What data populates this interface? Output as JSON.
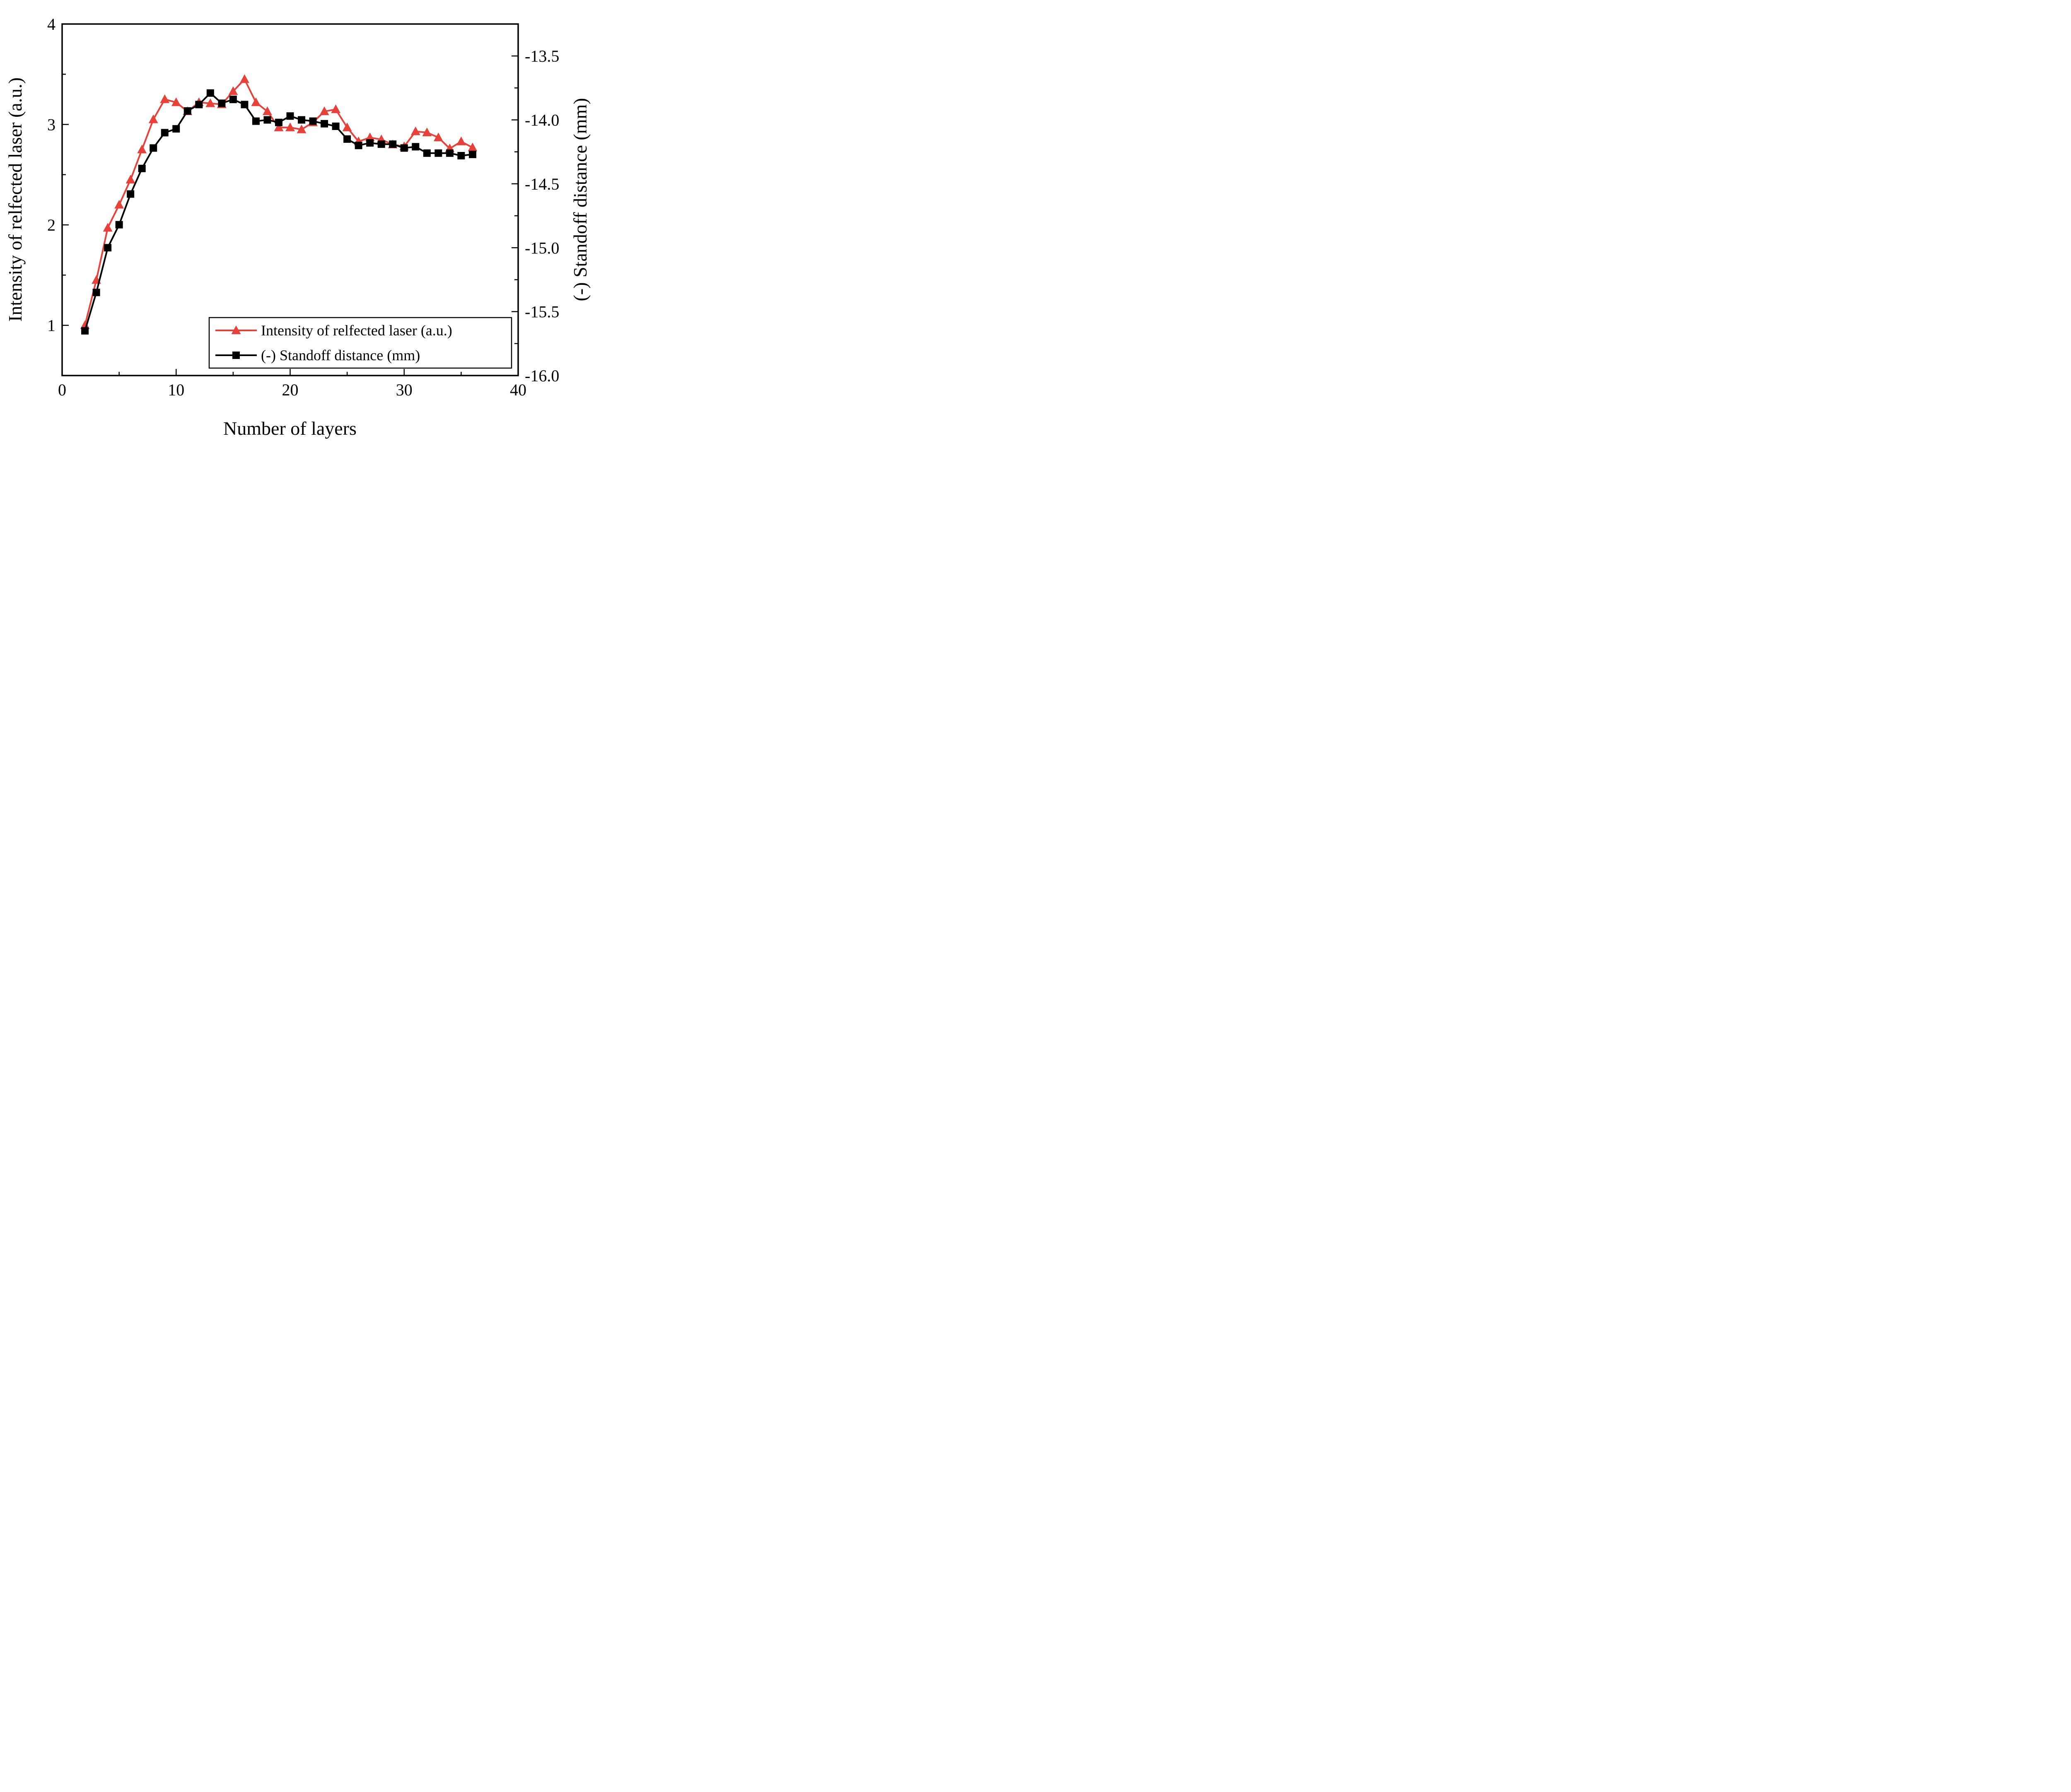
{
  "colors": {
    "intensity_series": "#e8413a",
    "standoff_series": "#000000",
    "frame": "#000000",
    "background": "#ffffff"
  },
  "chart_data": {
    "type": "line",
    "title": "",
    "xlabel": "Number of layers",
    "ylabel_left": "Intensity of relfected laser (a.u.)",
    "ylabel_right": "(-) Standoff distance (mm)",
    "xlim": [
      0,
      40
    ],
    "ylim_left": [
      0.5,
      4.0
    ],
    "ylim_right": [
      -16.0,
      -13.25
    ],
    "x_ticks": [
      0,
      10,
      20,
      30,
      40
    ],
    "x_minor_ticks": [
      5,
      15,
      25,
      35
    ],
    "y_ticks_left": [
      1,
      2,
      3,
      4
    ],
    "y_minor_ticks_left": [
      1.5,
      2.5,
      3.5
    ],
    "y_ticks_right": [
      -13.5,
      -14.0,
      -14.5,
      -15.0,
      -15.5,
      -16.0
    ],
    "y_minor_ticks_right": [
      -13.75,
      -14.25,
      -14.75,
      -15.25,
      -15.75
    ],
    "grid": false,
    "legend_position": "lower right",
    "x": [
      2,
      3,
      4,
      5,
      6,
      7,
      8,
      9,
      10,
      11,
      12,
      13,
      14,
      15,
      16,
      17,
      18,
      19,
      20,
      21,
      22,
      23,
      24,
      25,
      26,
      27,
      28,
      29,
      30,
      31,
      32,
      33,
      34,
      35,
      36
    ],
    "series": [
      {
        "name": "Intensity of relfected laser (a.u.)",
        "axis": "left",
        "marker": "triangle",
        "color": "#e8413a",
        "values": [
          1.0,
          1.45,
          1.97,
          2.2,
          2.45,
          2.75,
          3.05,
          3.25,
          3.22,
          3.13,
          3.22,
          3.21,
          3.2,
          3.33,
          3.45,
          3.22,
          3.13,
          2.97,
          2.97,
          2.95,
          3.02,
          3.13,
          3.15,
          2.97,
          2.83,
          2.87,
          2.85,
          2.8,
          2.78,
          2.93,
          2.92,
          2.87,
          2.76,
          2.83,
          2.77
        ]
      },
      {
        "name": "(-) Standoff distance (mm)",
        "axis": "right",
        "marker": "square",
        "color": "#000000",
        "values": [
          -15.65,
          -15.35,
          -15.0,
          -14.82,
          -14.58,
          -14.38,
          -14.22,
          -14.1,
          -14.07,
          -13.93,
          -13.88,
          -13.79,
          -13.87,
          -13.84,
          -13.88,
          -14.01,
          -14.0,
          -14.02,
          -13.97,
          -14.0,
          -14.01,
          -14.03,
          -14.05,
          -14.15,
          -14.2,
          -14.18,
          -14.19,
          -14.19,
          -14.22,
          -14.21,
          -14.26,
          -14.26,
          -14.26,
          -14.28,
          -14.27
        ]
      }
    ]
  }
}
